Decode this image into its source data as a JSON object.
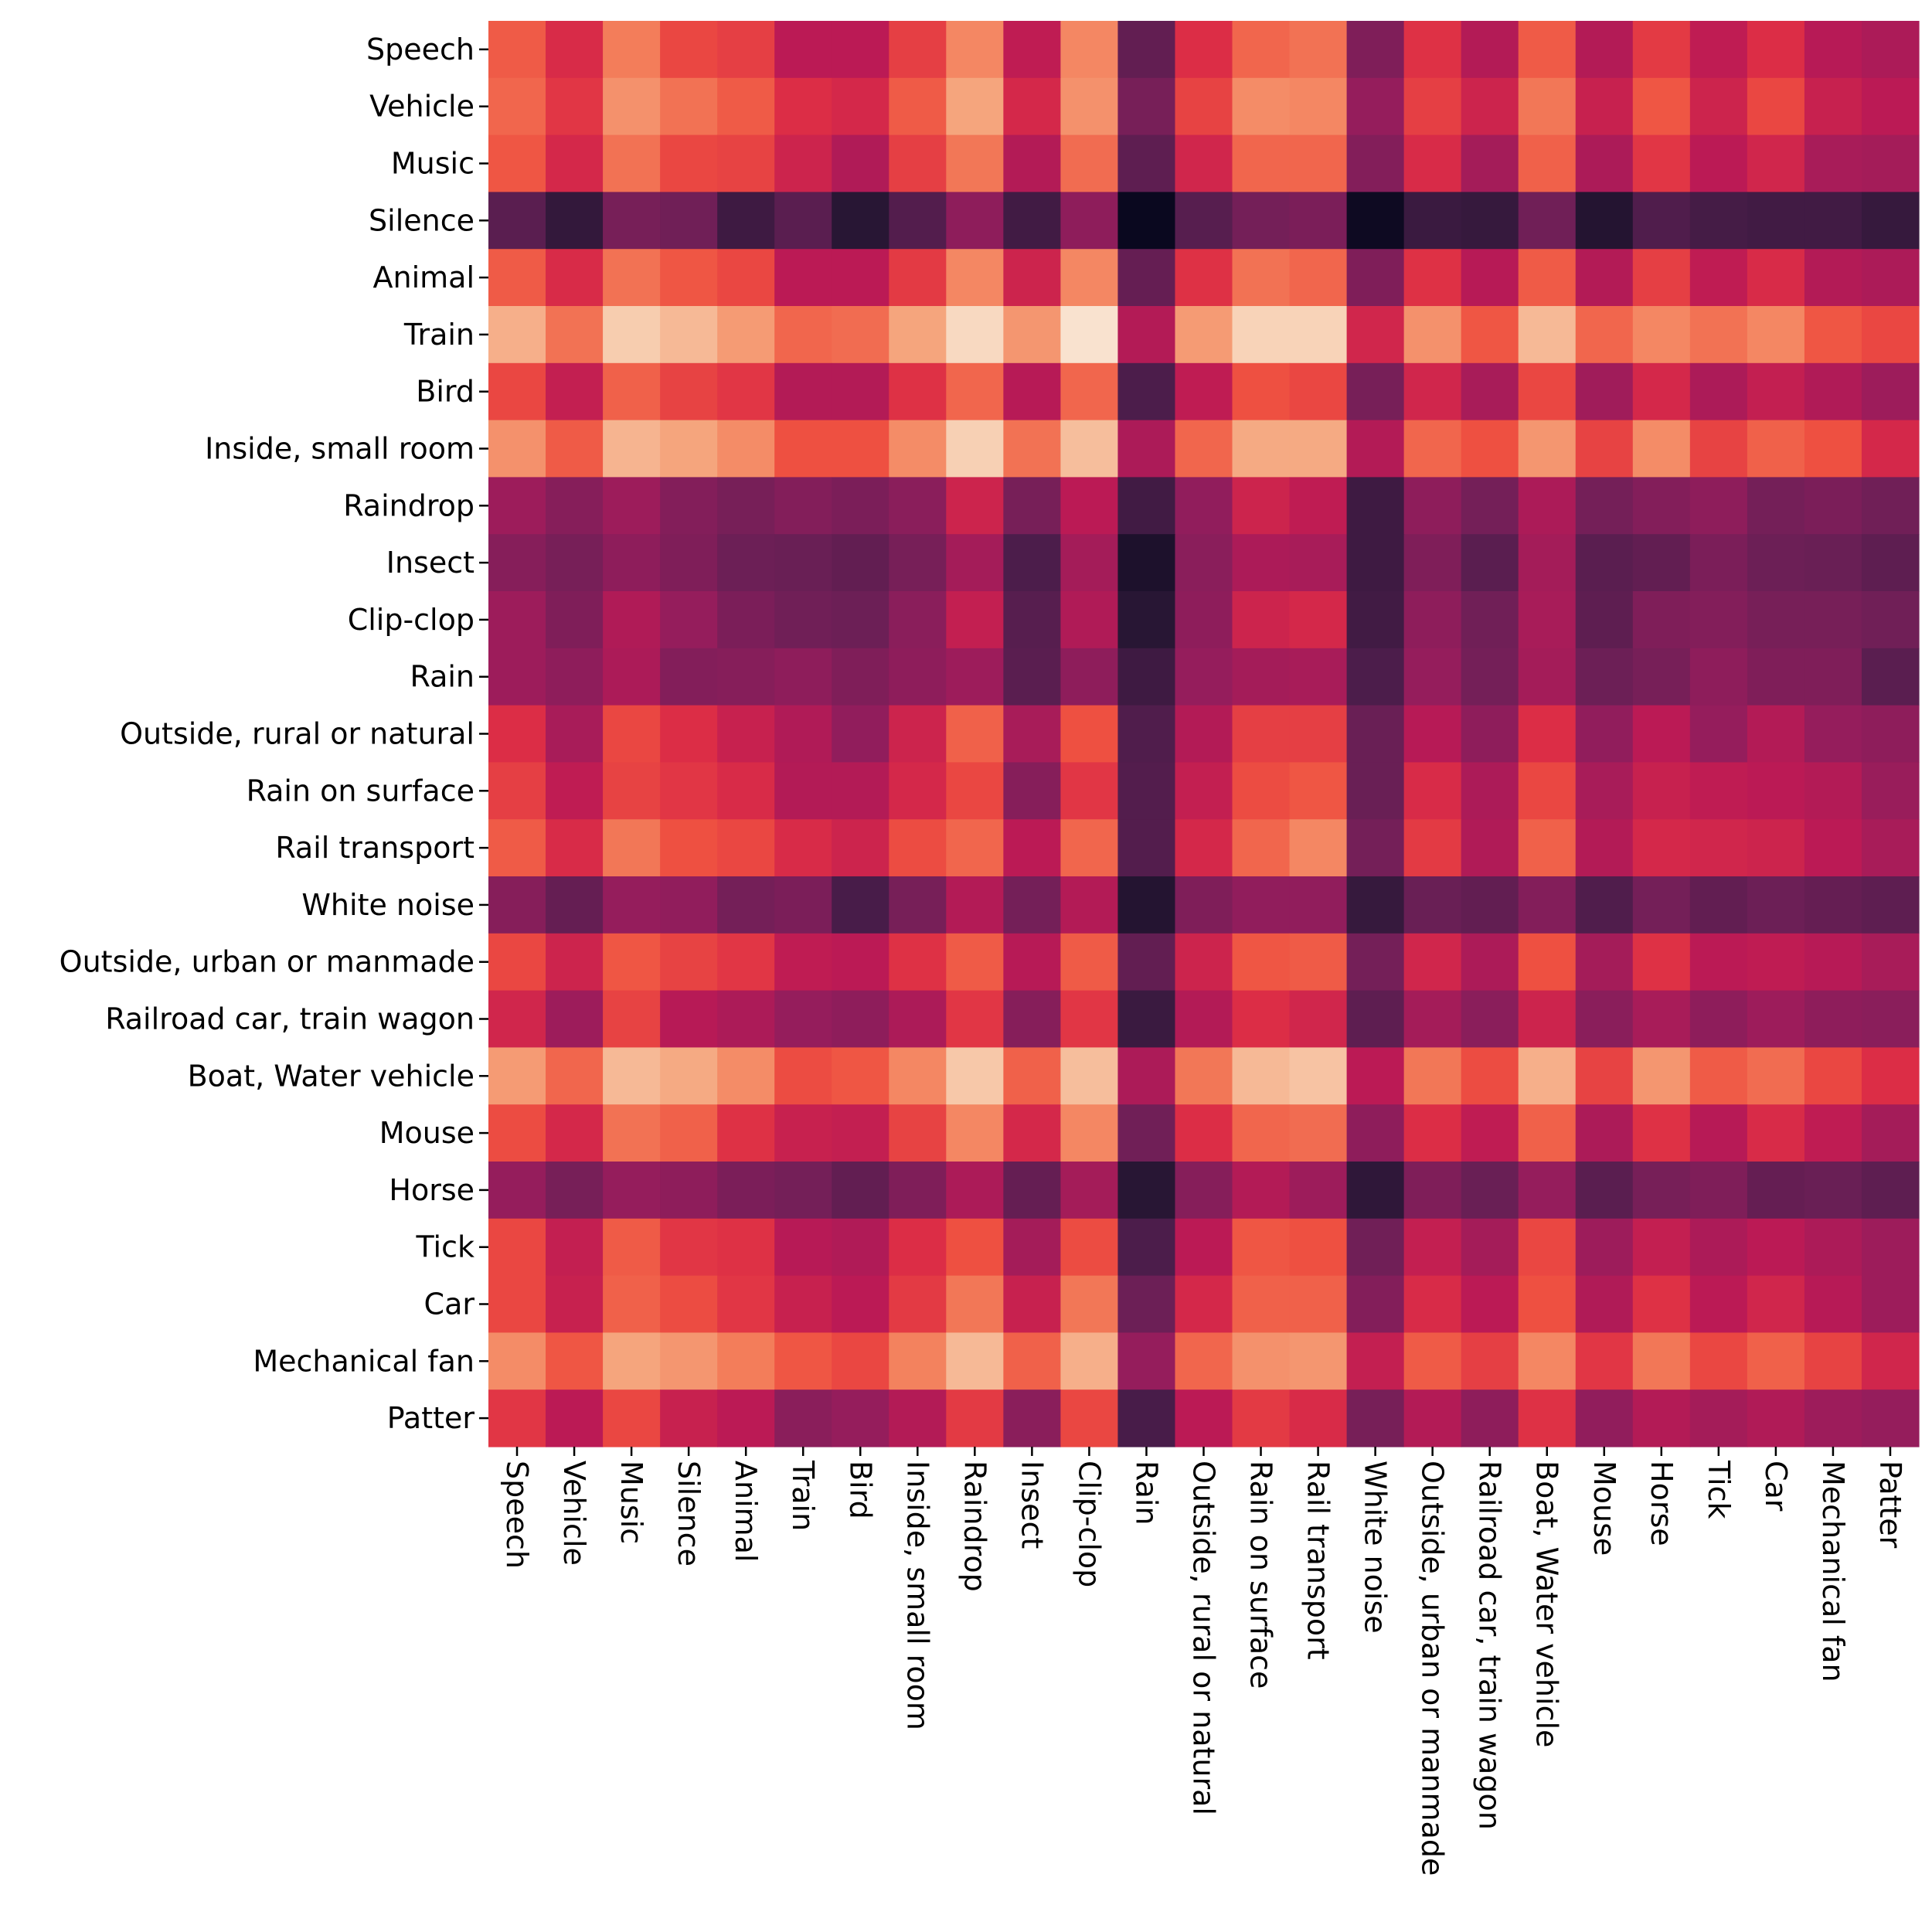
{
  "chart_data": {
    "type": "heatmap",
    "title": "",
    "xlabel": "",
    "ylabel": "",
    "categories": [
      "Speech",
      "Vehicle",
      "Music",
      "Silence",
      "Animal",
      "Train",
      "Bird",
      "Inside, small room",
      "Raindrop",
      "Insect",
      "Clip-clop",
      "Rain",
      "Outside, rural or natural",
      "Rain on surface",
      "Rail transport",
      "White noise",
      "Outside, urban or manmade",
      "Railroad car, train wagon",
      "Boat, Water vehicle",
      "Mouse",
      "Horse",
      "Tick",
      "Car",
      "Mechanical fan",
      "Patter"
    ],
    "x_categories": [
      "Speech",
      "Vehicle",
      "Music",
      "Silence",
      "Animal",
      "Train",
      "Bird",
      "Inside, small room",
      "Raindrop",
      "Insect",
      "Clip-clop",
      "Rain",
      "Outside, rural or natural",
      "Rain on surface",
      "Rail transport",
      "White noise",
      "Outside, urban or manmade",
      "Railroad car, train wagon",
      "Boat, Water vehicle",
      "Mouse",
      "Horse",
      "Tick",
      "Car",
      "Mechanical fan",
      "Patter"
    ],
    "y_categories": [
      "Speech",
      "Vehicle",
      "Music",
      "Silence",
      "Animal",
      "Train",
      "Bird",
      "Inside, small room",
      "Raindrop",
      "Insect",
      "Clip-clop",
      "Rain",
      "Outside, rural or natural",
      "Rain on surface",
      "Rail transport",
      "White noise",
      "Outside, urban or manmade",
      "Railroad car, train wagon",
      "Boat, Water vehicle",
      "Mouse",
      "Horse",
      "Tick",
      "Car",
      "Mechanical fan",
      "Patter"
    ],
    "colormap": "rocket",
    "colorbar": false,
    "values": [
      [
        0.68,
        0.57,
        0.74,
        0.64,
        0.62,
        0.5,
        0.5,
        0.62,
        0.76,
        0.51,
        0.76,
        0.26,
        0.58,
        0.7,
        0.72,
        0.34,
        0.59,
        0.48,
        0.68,
        0.48,
        0.61,
        0.51,
        0.58,
        0.49,
        0.46
      ],
      [
        0.7,
        0.6,
        0.78,
        0.72,
        0.68,
        0.58,
        0.56,
        0.68,
        0.82,
        0.56,
        0.78,
        0.32,
        0.63,
        0.77,
        0.76,
        0.4,
        0.62,
        0.54,
        0.73,
        0.53,
        0.67,
        0.54,
        0.64,
        0.53,
        0.5
      ],
      [
        0.67,
        0.56,
        0.72,
        0.64,
        0.63,
        0.54,
        0.47,
        0.62,
        0.73,
        0.48,
        0.71,
        0.25,
        0.55,
        0.7,
        0.7,
        0.35,
        0.57,
        0.44,
        0.69,
        0.46,
        0.6,
        0.5,
        0.55,
        0.45,
        0.44
      ],
      [
        0.24,
        0.13,
        0.32,
        0.3,
        0.16,
        0.24,
        0.1,
        0.22,
        0.38,
        0.17,
        0.38,
        0.02,
        0.23,
        0.31,
        0.33,
        0.03,
        0.15,
        0.14,
        0.3,
        0.09,
        0.21,
        0.18,
        0.17,
        0.17,
        0.14
      ],
      [
        0.68,
        0.57,
        0.72,
        0.67,
        0.64,
        0.5,
        0.5,
        0.61,
        0.76,
        0.54,
        0.76,
        0.27,
        0.59,
        0.72,
        0.7,
        0.34,
        0.59,
        0.49,
        0.68,
        0.48,
        0.62,
        0.51,
        0.57,
        0.48,
        0.46
      ],
      [
        0.84,
        0.72,
        0.9,
        0.86,
        0.8,
        0.7,
        0.71,
        0.82,
        0.94,
        0.79,
        0.97,
        0.48,
        0.8,
        0.92,
        0.92,
        0.55,
        0.78,
        0.67,
        0.86,
        0.7,
        0.76,
        0.72,
        0.76,
        0.67,
        0.64
      ],
      [
        0.64,
        0.52,
        0.69,
        0.63,
        0.6,
        0.48,
        0.48,
        0.59,
        0.7,
        0.49,
        0.7,
        0.2,
        0.51,
        0.66,
        0.64,
        0.32,
        0.55,
        0.45,
        0.64,
        0.43,
        0.56,
        0.46,
        0.52,
        0.47,
        0.42
      ],
      [
        0.78,
        0.68,
        0.85,
        0.82,
        0.77,
        0.66,
        0.66,
        0.77,
        0.91,
        0.72,
        0.87,
        0.46,
        0.7,
        0.83,
        0.83,
        0.48,
        0.7,
        0.66,
        0.79,
        0.63,
        0.77,
        0.63,
        0.69,
        0.66,
        0.56
      ],
      [
        0.42,
        0.36,
        0.42,
        0.35,
        0.32,
        0.35,
        0.33,
        0.37,
        0.54,
        0.32,
        0.5,
        0.17,
        0.39,
        0.54,
        0.51,
        0.16,
        0.38,
        0.31,
        0.46,
        0.31,
        0.35,
        0.38,
        0.31,
        0.33,
        0.3
      ],
      [
        0.36,
        0.32,
        0.38,
        0.34,
        0.29,
        0.28,
        0.26,
        0.32,
        0.44,
        0.2,
        0.44,
        0.07,
        0.37,
        0.46,
        0.45,
        0.16,
        0.34,
        0.24,
        0.44,
        0.24,
        0.26,
        0.33,
        0.29,
        0.28,
        0.25
      ],
      [
        0.42,
        0.34,
        0.47,
        0.4,
        0.33,
        0.3,
        0.29,
        0.37,
        0.52,
        0.23,
        0.47,
        0.1,
        0.38,
        0.54,
        0.56,
        0.17,
        0.38,
        0.3,
        0.45,
        0.25,
        0.34,
        0.35,
        0.32,
        0.32,
        0.3
      ],
      [
        0.42,
        0.38,
        0.46,
        0.35,
        0.36,
        0.38,
        0.34,
        0.38,
        0.42,
        0.24,
        0.38,
        0.16,
        0.4,
        0.44,
        0.45,
        0.2,
        0.4,
        0.31,
        0.44,
        0.29,
        0.32,
        0.38,
        0.34,
        0.34,
        0.24
      ],
      [
        0.58,
        0.45,
        0.64,
        0.58,
        0.53,
        0.47,
        0.39,
        0.54,
        0.69,
        0.45,
        0.66,
        0.21,
        0.48,
        0.62,
        0.62,
        0.28,
        0.49,
        0.38,
        0.58,
        0.39,
        0.5,
        0.4,
        0.48,
        0.4,
        0.38
      ],
      [
        0.62,
        0.51,
        0.63,
        0.6,
        0.57,
        0.48,
        0.48,
        0.56,
        0.64,
        0.36,
        0.6,
        0.22,
        0.52,
        0.65,
        0.67,
        0.28,
        0.57,
        0.46,
        0.64,
        0.45,
        0.53,
        0.51,
        0.5,
        0.48,
        0.41
      ],
      [
        0.68,
        0.57,
        0.73,
        0.66,
        0.64,
        0.57,
        0.54,
        0.65,
        0.7,
        0.5,
        0.7,
        0.22,
        0.56,
        0.7,
        0.76,
        0.31,
        0.61,
        0.47,
        0.69,
        0.48,
        0.56,
        0.55,
        0.54,
        0.5,
        0.45
      ],
      [
        0.36,
        0.27,
        0.4,
        0.39,
        0.31,
        0.33,
        0.19,
        0.32,
        0.48,
        0.31,
        0.48,
        0.09,
        0.34,
        0.39,
        0.39,
        0.14,
        0.28,
        0.26,
        0.35,
        0.21,
        0.31,
        0.26,
        0.29,
        0.27,
        0.25
      ],
      [
        0.64,
        0.54,
        0.67,
        0.63,
        0.6,
        0.51,
        0.5,
        0.59,
        0.68,
        0.49,
        0.68,
        0.26,
        0.54,
        0.67,
        0.68,
        0.31,
        0.55,
        0.46,
        0.66,
        0.44,
        0.59,
        0.5,
        0.51,
        0.49,
        0.45
      ],
      [
        0.55,
        0.42,
        0.63,
        0.49,
        0.46,
        0.4,
        0.38,
        0.46,
        0.6,
        0.36,
        0.6,
        0.15,
        0.48,
        0.58,
        0.55,
        0.25,
        0.44,
        0.37,
        0.54,
        0.37,
        0.45,
        0.38,
        0.42,
        0.38,
        0.37
      ],
      [
        0.8,
        0.7,
        0.86,
        0.83,
        0.77,
        0.65,
        0.67,
        0.76,
        0.89,
        0.69,
        0.87,
        0.46,
        0.73,
        0.86,
        0.88,
        0.5,
        0.73,
        0.65,
        0.84,
        0.63,
        0.79,
        0.68,
        0.71,
        0.64,
        0.58
      ],
      [
        0.65,
        0.56,
        0.72,
        0.69,
        0.59,
        0.53,
        0.52,
        0.63,
        0.76,
        0.56,
        0.76,
        0.3,
        0.58,
        0.7,
        0.71,
        0.38,
        0.58,
        0.51,
        0.69,
        0.46,
        0.59,
        0.49,
        0.57,
        0.51,
        0.44
      ],
      [
        0.4,
        0.32,
        0.4,
        0.38,
        0.33,
        0.31,
        0.26,
        0.34,
        0.46,
        0.27,
        0.44,
        0.1,
        0.36,
        0.48,
        0.42,
        0.12,
        0.34,
        0.28,
        0.4,
        0.24,
        0.32,
        0.34,
        0.27,
        0.28,
        0.25
      ],
      [
        0.64,
        0.52,
        0.68,
        0.6,
        0.59,
        0.49,
        0.47,
        0.58,
        0.66,
        0.44,
        0.65,
        0.2,
        0.5,
        0.67,
        0.66,
        0.3,
        0.52,
        0.44,
        0.64,
        0.42,
        0.52,
        0.46,
        0.5,
        0.46,
        0.42
      ],
      [
        0.64,
        0.53,
        0.69,
        0.65,
        0.6,
        0.53,
        0.5,
        0.61,
        0.73,
        0.53,
        0.73,
        0.29,
        0.56,
        0.69,
        0.69,
        0.35,
        0.57,
        0.5,
        0.66,
        0.47,
        0.59,
        0.5,
        0.55,
        0.49,
        0.42
      ],
      [
        0.77,
        0.67,
        0.82,
        0.79,
        0.74,
        0.67,
        0.64,
        0.75,
        0.86,
        0.69,
        0.84,
        0.4,
        0.7,
        0.78,
        0.79,
        0.52,
        0.68,
        0.62,
        0.76,
        0.6,
        0.73,
        0.64,
        0.69,
        0.63,
        0.55
      ],
      [
        0.6,
        0.5,
        0.64,
        0.53,
        0.5,
        0.37,
        0.4,
        0.48,
        0.61,
        0.37,
        0.64,
        0.19,
        0.5,
        0.61,
        0.57,
        0.32,
        0.48,
        0.38,
        0.59,
        0.39,
        0.48,
        0.44,
        0.47,
        0.42,
        0.4
      ]
    ]
  }
}
